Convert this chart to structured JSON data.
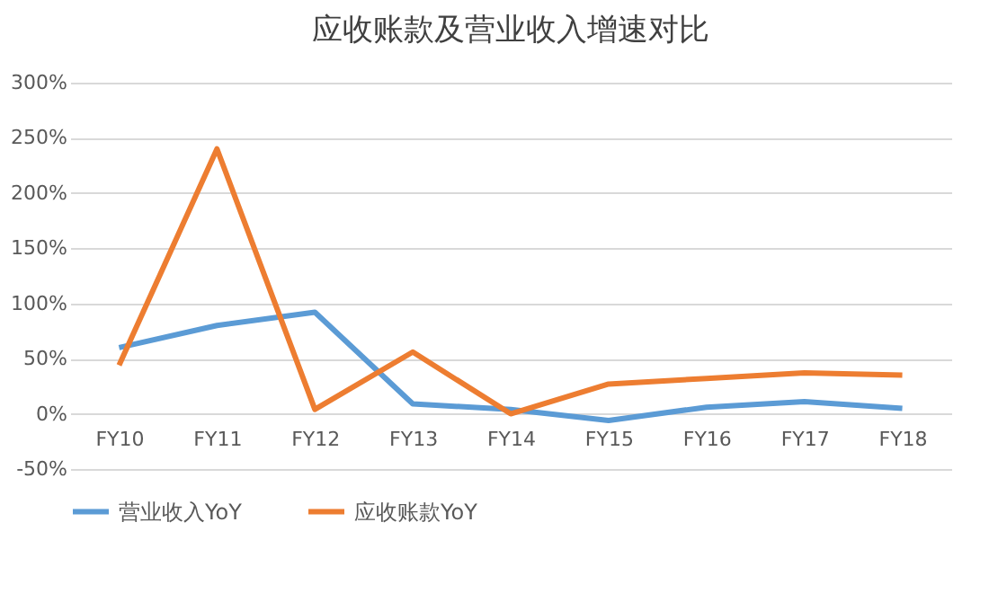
{
  "chart_data": {
    "type": "line",
    "title": "应收账款及营业收入增速对比",
    "categories": [
      "FY10",
      "FY11",
      "FY12",
      "FY13",
      "FY14",
      "FY15",
      "FY16",
      "FY17",
      "FY18"
    ],
    "series": [
      {
        "name": "营业收入YoY",
        "color": "#5b9bd5",
        "values": [
          60,
          80,
          92,
          9,
          4,
          -6,
          6,
          11,
          5
        ]
      },
      {
        "name": "应收账款YoY",
        "color": "#ed7d31",
        "values": [
          44,
          240,
          4,
          56,
          0,
          27,
          32,
          37,
          35
        ]
      }
    ],
    "ylim": [
      -50,
      300
    ],
    "yticks": [
      {
        "value": -50,
        "label": "-50%"
      },
      {
        "value": 0,
        "label": "0%"
      },
      {
        "value": 50,
        "label": "50%"
      },
      {
        "value": 100,
        "label": "100%"
      },
      {
        "value": 150,
        "label": "150%"
      },
      {
        "value": 200,
        "label": "200%"
      },
      {
        "value": 250,
        "label": "250%"
      },
      {
        "value": 300,
        "label": "300%"
      }
    ],
    "grid": true,
    "legend": "bottom",
    "marker": "none",
    "line_style": "solid"
  }
}
